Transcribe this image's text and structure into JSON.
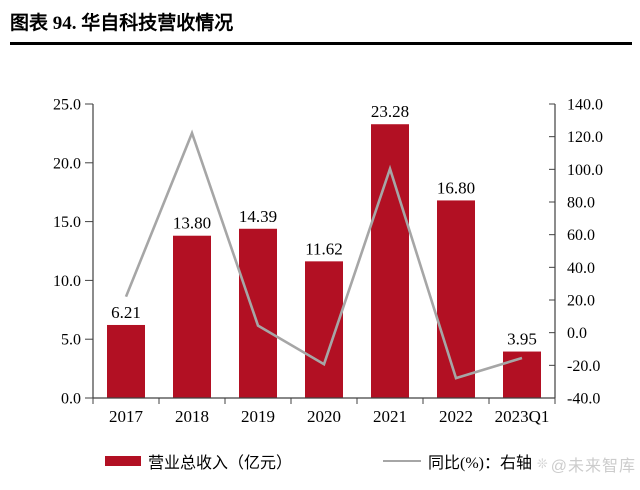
{
  "figure": {
    "title": "图表 94. 华自科技营收情况",
    "watermark": "@未来智库"
  },
  "legend": {
    "bar_label": "营业总收入（亿元）",
    "line_label": "同比(%)：右轴"
  },
  "colors": {
    "bar": "#b21023",
    "line": "#a6a6a6",
    "axis": "#404040",
    "watermark": "#cccccc"
  },
  "chart_data": {
    "type": "bar",
    "title": "华自科技营收情况",
    "categories": [
      "2017",
      "2018",
      "2019",
      "2020",
      "2021",
      "2022",
      "2023Q1"
    ],
    "series": [
      {
        "name": "营业总收入（亿元）",
        "type": "bar",
        "axis": "left",
        "color": "#b21023",
        "values": [
          6.21,
          13.8,
          14.39,
          11.62,
          23.28,
          16.8,
          3.95
        ],
        "labels": [
          "6.21",
          "13.80",
          "14.39",
          "11.62",
          "23.28",
          "16.80",
          "3.95"
        ]
      },
      {
        "name": "同比(%)：右轴",
        "type": "line",
        "axis": "right",
        "color": "#a6a6a6",
        "values": [
          22.0,
          122.2,
          4.3,
          -19.3,
          100.3,
          -27.8,
          -15.5
        ]
      }
    ],
    "left_axis": {
      "min": 0,
      "max": 25,
      "step": 5,
      "tick_labels": [
        "0.0",
        "5.0",
        "10.0",
        "15.0",
        "20.0",
        "25.0"
      ]
    },
    "right_axis": {
      "min": -40,
      "max": 140,
      "step": 20,
      "tick_labels": [
        "-40.0",
        "-20.0",
        "0.0",
        "20.0",
        "40.0",
        "60.0",
        "80.0",
        "100.0",
        "120.0",
        "140.0"
      ]
    },
    "grid": false,
    "legend_position": "bottom",
    "data_labels_shown": true
  }
}
